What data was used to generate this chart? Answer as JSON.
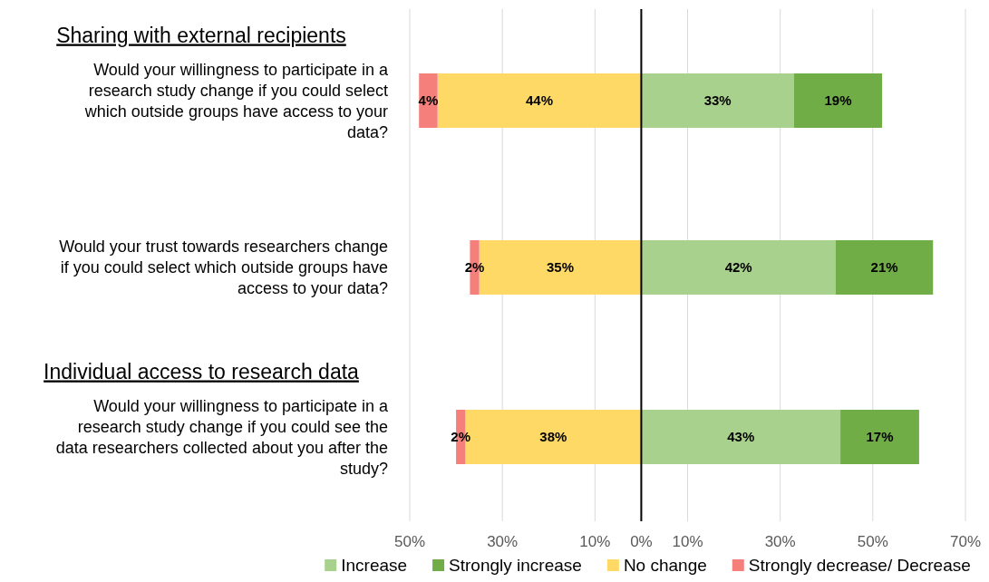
{
  "chart_data": {
    "type": "bar",
    "orientation": "horizontal",
    "categories": [
      "Would your willingness to participate in a research study change if you could select which outside groups have access to your data?",
      "Would your trust towards researchers change if you could select which outside groups have access to your data?",
      "Would your willingness to participate in a research study change if you could see the data researchers collected about you after the study?"
    ],
    "series": [
      {
        "name": "Increase",
        "color": "#a9d18e",
        "base": [
          0,
          0,
          0
        ],
        "values": [
          33,
          42,
          43
        ],
        "value_labels": [
          "33%",
          "42%",
          "43%"
        ]
      },
      {
        "name": "Strongly increase",
        "color": "#70ad47",
        "base": [
          33,
          42,
          43
        ],
        "values": [
          19,
          21,
          17
        ],
        "value_labels": [
          "19%",
          "21%",
          "17%"
        ]
      },
      {
        "name": "No change",
        "color": "#ffd966",
        "base": [
          -44,
          -35,
          -38
        ],
        "values": [
          44,
          35,
          38
        ],
        "value_labels": [
          "44%",
          "35%",
          "38%"
        ]
      },
      {
        "name": "Strongly decrease/ Decrease",
        "color": "#f47f7b",
        "base": [
          -48,
          -37,
          -40
        ],
        "values": [
          4,
          2,
          2
        ],
        "value_labels": [
          "4%",
          "2%",
          "2%"
        ]
      }
    ],
    "xlim": [
      -50,
      70
    ],
    "xticks": [
      {
        "value": -50,
        "label": "50%"
      },
      {
        "value": -30,
        "label": "30%"
      },
      {
        "value": -10,
        "label": "10%"
      },
      {
        "value": 0,
        "label": "0%"
      },
      {
        "value": 10,
        "label": "10%"
      },
      {
        "value": 30,
        "label": "30%"
      },
      {
        "value": 50,
        "label": "50%"
      },
      {
        "value": 70,
        "label": "70%"
      }
    ],
    "ref_lines": [
      {
        "axis": "x",
        "value": 0,
        "color": "#000000"
      }
    ],
    "annotations": [
      "Sharing with external recipients",
      "Individual access to research data"
    ],
    "grid": "x",
    "legend": "bottom"
  }
}
